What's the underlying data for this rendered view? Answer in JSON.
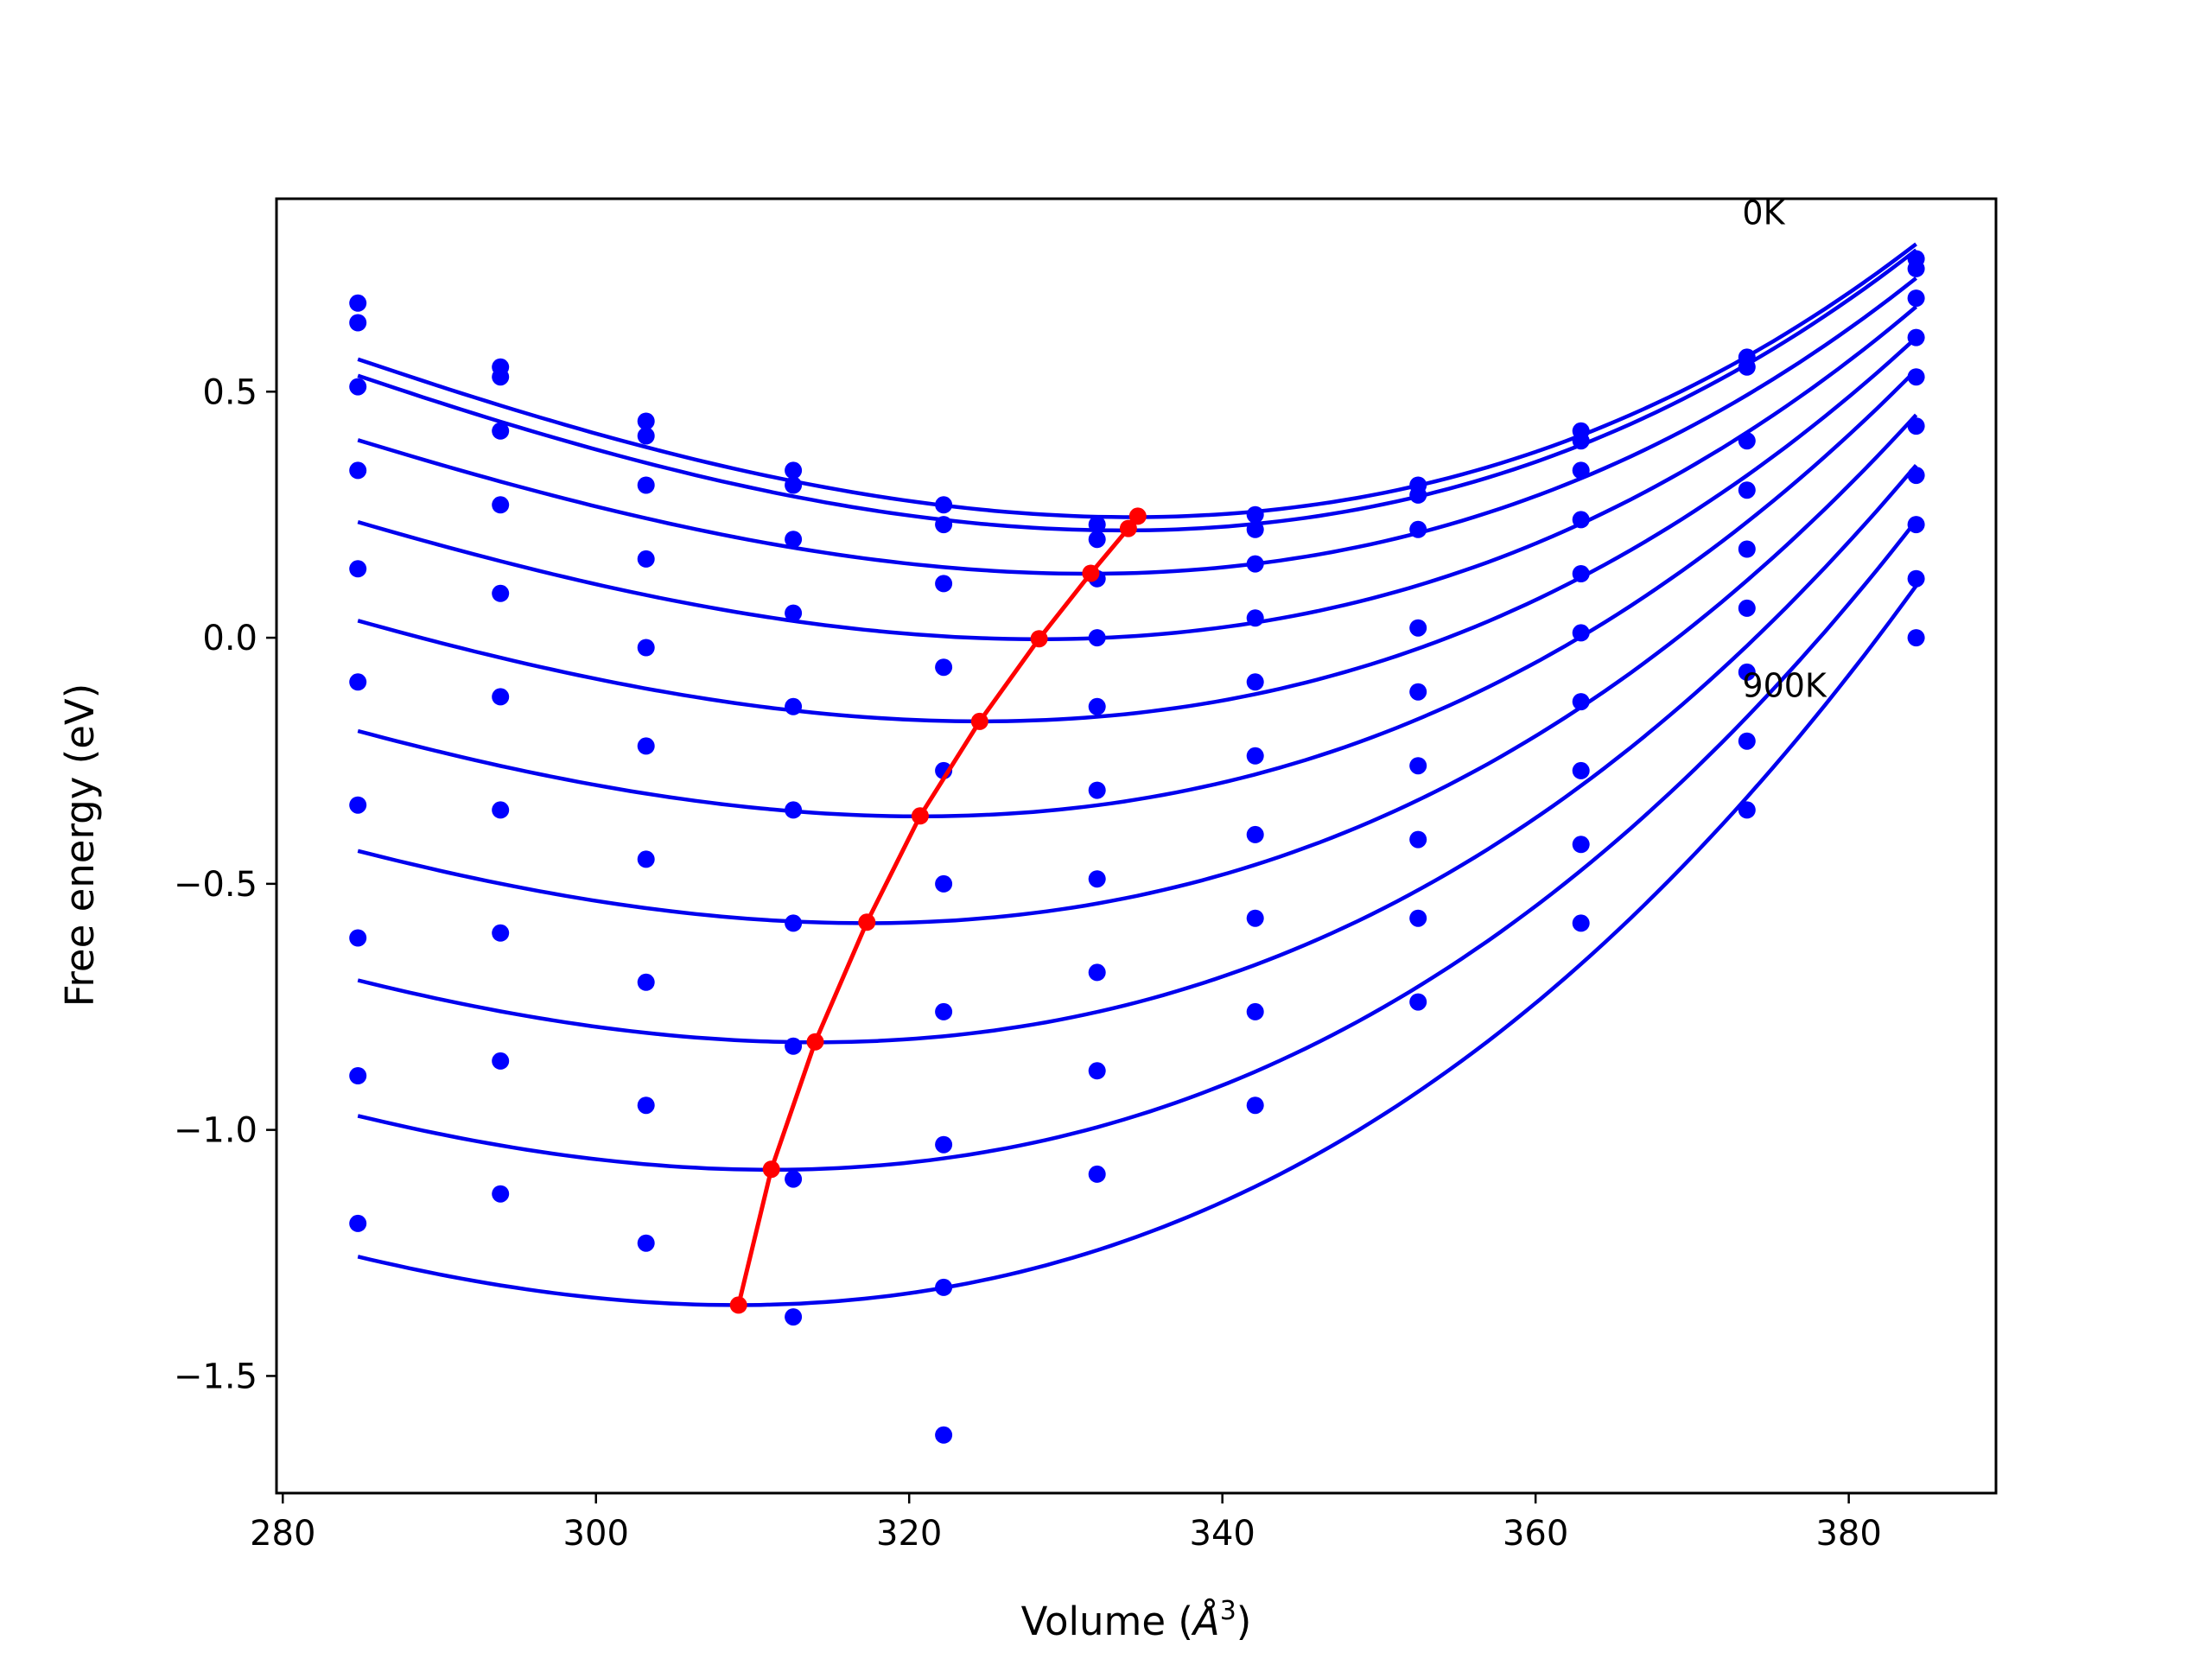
{
  "chart_data": {
    "type": "line",
    "xlabel": "Volume (",
    "xlabel_unit": "Å",
    "xlabel_sup": "3",
    "xlabel_end": ")",
    "ylabel": "Free energy (eV)",
    "xlim": [
      279.6,
      389.4
    ],
    "ylim": [
      -1.738,
      0.892
    ],
    "xticks": [
      280,
      300,
      320,
      340,
      360,
      380
    ],
    "yticks": [
      -1.5,
      -1.0,
      -0.5,
      0.0,
      0.5
    ],
    "ytick_labels": [
      "−1.5",
      "−1.0",
      "−0.5",
      "0.0",
      "0.5"
    ],
    "grid": false,
    "annotations": [
      {
        "text": "0K",
        "x": 373.2,
        "y": 0.84
      },
      {
        "text": "900K",
        "x": 373.2,
        "y": -0.12
      }
    ],
    "colors": {
      "fit": "#0000ee",
      "points": "#0000ff",
      "minimum": "#ff0000"
    },
    "volumes": [
      284.8,
      293.9,
      303.2,
      312.6,
      322.2,
      332.0,
      342.1,
      352.5,
      362.9,
      373.5,
      384.3
    ],
    "point_series": [
      [
        0.68,
        0.55,
        0.44,
        0.34,
        0.27,
        0.23,
        0.25,
        0.31,
        0.42,
        0.57,
        0.77
      ],
      [
        0.64,
        0.53,
        0.41,
        0.31,
        0.23,
        0.2,
        0.22,
        0.29,
        0.4,
        0.55,
        0.75
      ],
      [
        0.51,
        0.42,
        0.31,
        0.2,
        0.11,
        0.12,
        0.15,
        0.22,
        0.34,
        0.4,
        0.69
      ],
      [
        0.34,
        0.27,
        0.16,
        0.05,
        -0.06,
        0.0,
        0.04,
        0.02,
        0.24,
        0.3,
        0.61
      ],
      [
        0.14,
        0.09,
        -0.02,
        -0.14,
        -0.27,
        -0.14,
        -0.09,
        -0.11,
        0.13,
        0.18,
        0.53
      ],
      [
        -0.09,
        -0.12,
        -0.22,
        -0.35,
        -0.5,
        -0.31,
        -0.24,
        -0.26,
        0.01,
        0.06,
        0.43
      ],
      [
        -0.34,
        -0.35,
        -0.45,
        -0.58,
        -0.76,
        -0.49,
        -0.4,
        -0.41,
        -0.13,
        -0.07,
        0.33
      ],
      [
        -0.61,
        -0.6,
        -0.7,
        -0.83,
        -1.03,
        -0.68,
        -0.57,
        -0.57,
        -0.27,
        -0.21,
        0.23
      ],
      [
        -0.89,
        -0.86,
        -0.95,
        -1.1,
        -1.32,
        -0.88,
        -0.76,
        -0.74,
        -0.42,
        -0.35,
        0.12
      ],
      [
        -1.19,
        -1.13,
        -1.23,
        -1.38,
        -1.62,
        -1.09,
        -0.95,
        null,
        -0.58,
        null,
        0.0
      ]
    ],
    "fit_curves": [
      {
        "v0": 334.2,
        "e0": 0.245,
        "a": 0.000176,
        "b": 9e-07
      },
      {
        "v0": 333.6,
        "e0": 0.218,
        "a": 0.000176,
        "b": 9e-07
      },
      {
        "v0": 331.4,
        "e0": 0.13,
        "a": 0.000167,
        "b": 9e-07
      },
      {
        "v0": 328.3,
        "e0": -0.003,
        "a": 0.000165,
        "b": 9e-07
      },
      {
        "v0": 324.6,
        "e0": -0.17,
        "a": 0.000165,
        "b": 9e-07
      },
      {
        "v0": 320.7,
        "e0": -0.363,
        "a": 0.000167,
        "b": 9e-07
      },
      {
        "v0": 317.2,
        "e0": -0.58,
        "a": 0.000169,
        "b": 9e-07
      },
      {
        "v0": 314.0,
        "e0": -0.822,
        "a": 0.000174,
        "b": 9e-07
      },
      {
        "v0": 311.2,
        "e0": -1.081,
        "a": 0.000181,
        "b": 9e-07
      },
      {
        "v0": 309.0,
        "e0": -1.356,
        "a": 0.00019,
        "b": 9e-07
      }
    ],
    "fit_range": [
      284.8,
      384.3
    ],
    "minimum_path": {
      "x": [
        334.6,
        334.0,
        331.6,
        328.3,
        324.5,
        320.7,
        317.3,
        314.0,
        311.2,
        309.1
      ],
      "y": [
        0.247,
        0.222,
        0.131,
        -0.002,
        -0.17,
        -0.362,
        -0.578,
        -0.821,
        -1.08,
        -1.356
      ]
    }
  }
}
